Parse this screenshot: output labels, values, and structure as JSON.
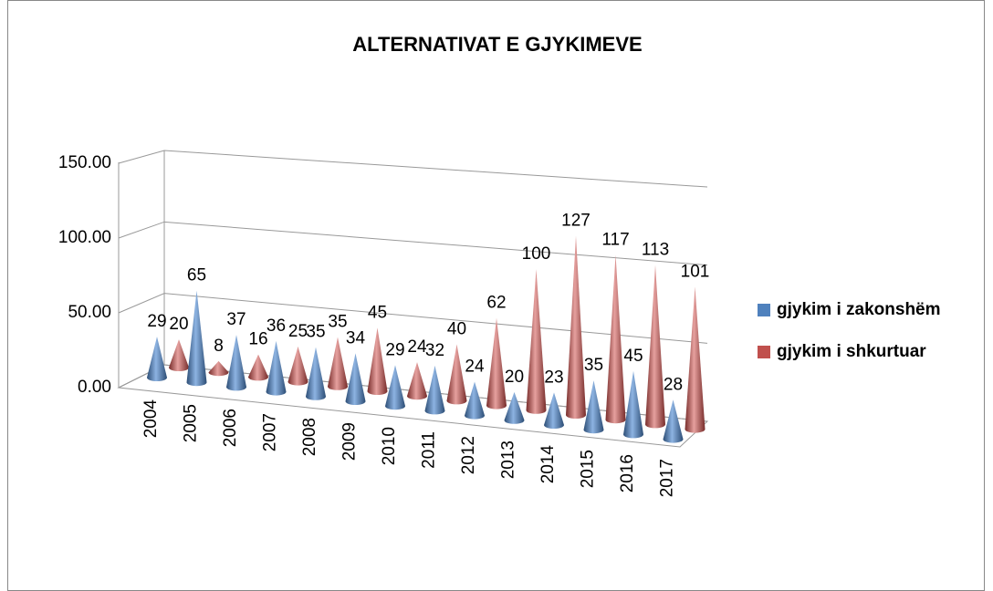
{
  "chart_data": {
    "type": "cone3d",
    "title": "ALTERNATIVAT E GJYKIMEVE",
    "categories": [
      "2004",
      "2005",
      "2006",
      "2007",
      "2008",
      "2009",
      "2010",
      "2011",
      "2012",
      "2013",
      "2014",
      "2015",
      "2016",
      "2017"
    ],
    "series": [
      {
        "name": "gjykim i zakonshëm",
        "color": "#4f81bd",
        "values": [
          29,
          65,
          37,
          36,
          35,
          34,
          29,
          32,
          24,
          20,
          23,
          35,
          45,
          28
        ]
      },
      {
        "name": "gjykim i shkurtuar",
        "color": "#c0504d",
        "values": [
          20,
          8,
          16,
          25,
          35,
          45,
          24,
          40,
          62,
          100,
          127,
          117,
          113,
          101
        ]
      }
    ],
    "ylim": [
      0,
      150
    ],
    "yticks": [
      {
        "value": 0,
        "label": "0.00"
      },
      {
        "value": 50,
        "label": "50.00"
      },
      {
        "value": 100,
        "label": "100.00"
      },
      {
        "value": 150,
        "label": "150.00"
      }
    ],
    "grid": true,
    "legend": "right"
  }
}
